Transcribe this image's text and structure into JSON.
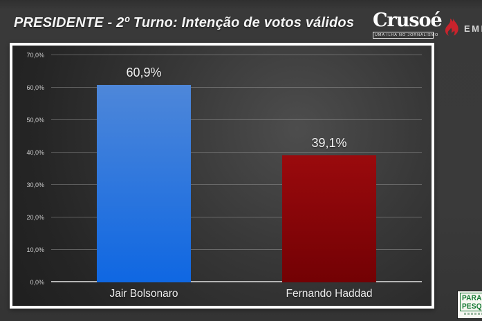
{
  "header": {
    "title": "PRESIDENTE - 2º Turno: Intenção de votos válidos",
    "crusoe": {
      "name": "Crusoé",
      "tagline": "UMA ILHA NO JORNALISMO"
    },
    "partner_text": "EMPI",
    "flame_color": "#c8232c"
  },
  "chart_data": {
    "type": "bar",
    "title": "PRESIDENTE - 2º Turno: Intenção de votos válidos",
    "categories": [
      "Jair Bolsonaro",
      "Fernando Haddad"
    ],
    "values": [
      60.9,
      39.1
    ],
    "value_labels": [
      "60,9%",
      "39,1%"
    ],
    "bar_colors": [
      {
        "top": "#4e87d9",
        "bottom": "#0f67e2"
      },
      {
        "top": "#9a0a0d",
        "bottom": "#730104"
      }
    ],
    "ylim": [
      0,
      70
    ],
    "y_ticks": [
      {
        "value": 0,
        "label": "0,0%"
      },
      {
        "value": 10,
        "label": "10,0%"
      },
      {
        "value": 20,
        "label": "20,0%"
      },
      {
        "value": 30,
        "label": "30,0%"
      },
      {
        "value": 40,
        "label": "40,0%"
      },
      {
        "value": 50,
        "label": "50,0%"
      },
      {
        "value": 60,
        "label": "60,0%"
      },
      {
        "value": 70,
        "label": "70,0%"
      }
    ],
    "grid": true,
    "legend": false,
    "plot_bg": "dark-gray-gradient"
  },
  "footer_logo": {
    "line1": "PARANÁ",
    "line2": "PESQUISAS",
    "accent": "#157a33"
  }
}
